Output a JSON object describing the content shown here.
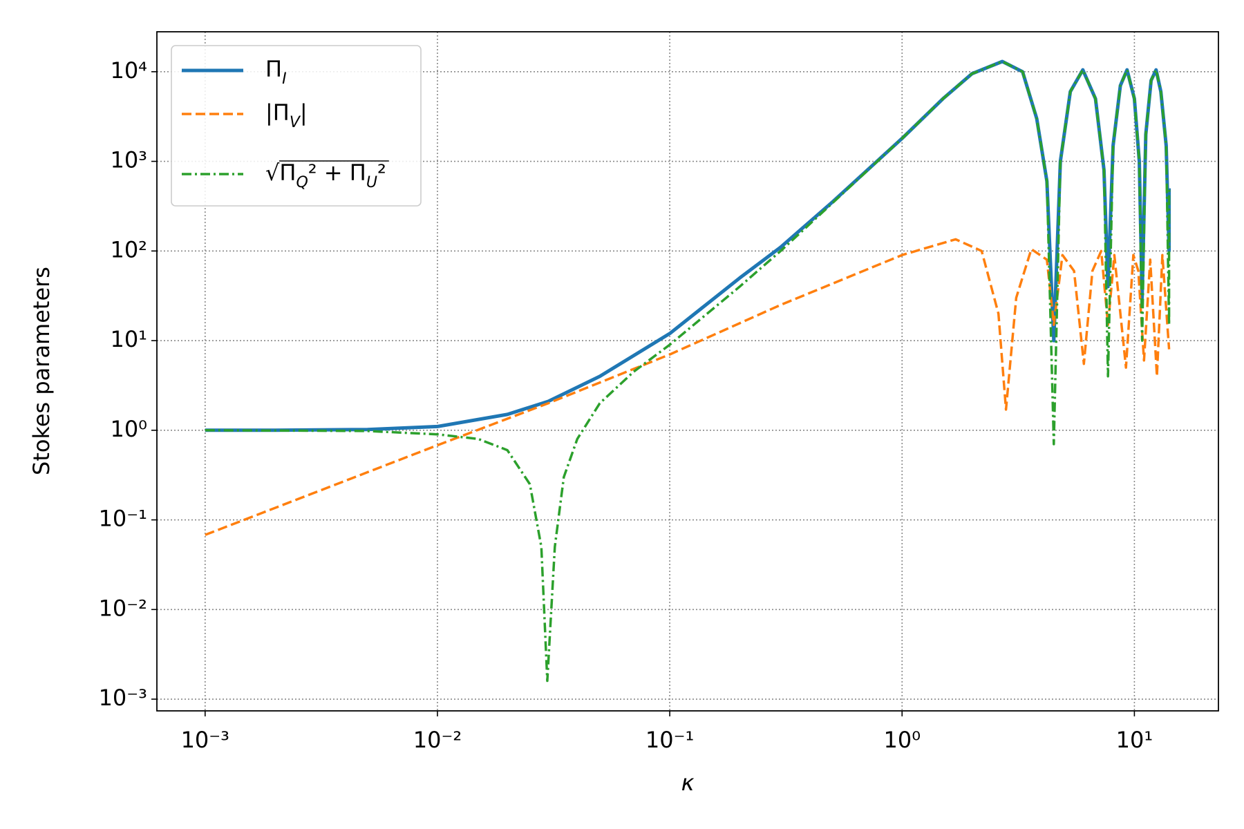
{
  "chart_data": {
    "type": "line",
    "xlabel": "κ",
    "ylabel": "Stokes parameters",
    "xscale": "log",
    "yscale": "log",
    "grid": true,
    "legend": "upper left",
    "xlim": [
      0.00062,
      23
    ],
    "ylim": [
      0.00074,
      27900
    ],
    "xticks": [
      {
        "value": 0.001,
        "label": "10⁻³"
      },
      {
        "value": 0.01,
        "label": "10⁻²"
      },
      {
        "value": 0.1,
        "label": "10⁻¹"
      },
      {
        "value": 1,
        "label": "10⁰"
      },
      {
        "value": 10,
        "label": "10¹"
      }
    ],
    "yticks": [
      {
        "value": 0.001,
        "label": "10⁻³"
      },
      {
        "value": 0.01,
        "label": "10⁻²"
      },
      {
        "value": 0.1,
        "label": "10⁻¹"
      },
      {
        "value": 1,
        "label": "10⁰"
      },
      {
        "value": 10,
        "label": "10¹"
      },
      {
        "value": 100,
        "label": "10²"
      },
      {
        "value": 1000,
        "label": "10³"
      },
      {
        "value": 10000,
        "label": "10⁴"
      }
    ],
    "series": [
      {
        "name": "ΠI",
        "color": "#1f77b4",
        "linestyle": "solid",
        "linewidth": 5,
        "x": [
          0.001,
          0.002,
          0.005,
          0.01,
          0.02,
          0.03,
          0.05,
          0.1,
          0.2,
          0.3,
          0.5,
          1,
          1.5,
          2,
          2.7,
          3.3,
          3.8,
          4.2,
          4.5,
          4.8,
          5.3,
          6,
          6.8,
          7.4,
          7.7,
          8.1,
          8.7,
          9.3,
          10,
          10.5,
          10.8,
          11.2,
          11.8,
          12.4,
          13,
          13.7,
          14.1,
          14.1
        ],
        "values": [
          1,
          1,
          1.02,
          1.1,
          1.5,
          2.1,
          4,
          12,
          50,
          110,
          350,
          1800,
          5000,
          9500,
          13000,
          10000,
          3000,
          600,
          10,
          1000,
          6000,
          10500,
          5000,
          800,
          40,
          1500,
          7000,
          10500,
          5000,
          1000,
          30,
          2000,
          8000,
          10500,
          6000,
          1500,
          100,
          500
        ]
      },
      {
        "name": "|ΠV|",
        "color": "#ff7f0e",
        "linestyle": "dashed",
        "linewidth": 3.5,
        "x": [
          0.001,
          0.01,
          0.03,
          0.1,
          0.3,
          1,
          1.7,
          2.2,
          2.6,
          2.8,
          3.1,
          3.6,
          4.2,
          4.5,
          4.9,
          5.5,
          6.06,
          6.6,
          7.2,
          7.7,
          8.2,
          9.2,
          9.9,
          10.4,
          11,
          11.7,
          12.5,
          13.2,
          14.1
        ],
        "values": [
          0.068,
          0.68,
          2,
          7,
          25,
          90,
          135,
          100,
          20,
          1.7,
          30,
          105,
          80,
          15,
          90,
          60,
          5.5,
          60,
          100,
          15,
          90,
          5,
          90,
          60,
          6,
          80,
          4,
          90,
          8
        ]
      },
      {
        "name": "√ΠQ² + ΠU²",
        "color": "#2ca02c",
        "linestyle": "dashdot",
        "linewidth": 3.5,
        "x": [
          0.001,
          0.005,
          0.01,
          0.015,
          0.02,
          0.025,
          0.028,
          0.0297,
          0.032,
          0.035,
          0.04,
          0.05,
          0.07,
          0.1,
          0.2,
          0.3,
          0.5,
          1,
          1.5,
          2,
          2.7,
          3.3,
          3.8,
          4.2,
          4.5,
          4.8,
          5.3,
          6,
          6.8,
          7.4,
          7.7,
          8.1,
          8.7,
          9.3,
          10,
          10.5,
          10.8,
          11.2,
          11.8,
          12.4,
          13,
          13.7,
          14.1,
          14.1
        ],
        "values": [
          1,
          0.98,
          0.9,
          0.8,
          0.6,
          0.25,
          0.05,
          0.0016,
          0.05,
          0.3,
          0.8,
          2,
          4.5,
          9,
          40,
          100,
          340,
          1800,
          5000,
          9500,
          13000,
          10000,
          3000,
          600,
          0.7,
          1000,
          6000,
          10500,
          5000,
          800,
          4,
          1500,
          7000,
          10500,
          5000,
          1000,
          10,
          2000,
          8000,
          10500,
          6000,
          1500,
          15,
          500
        ]
      }
    ]
  }
}
